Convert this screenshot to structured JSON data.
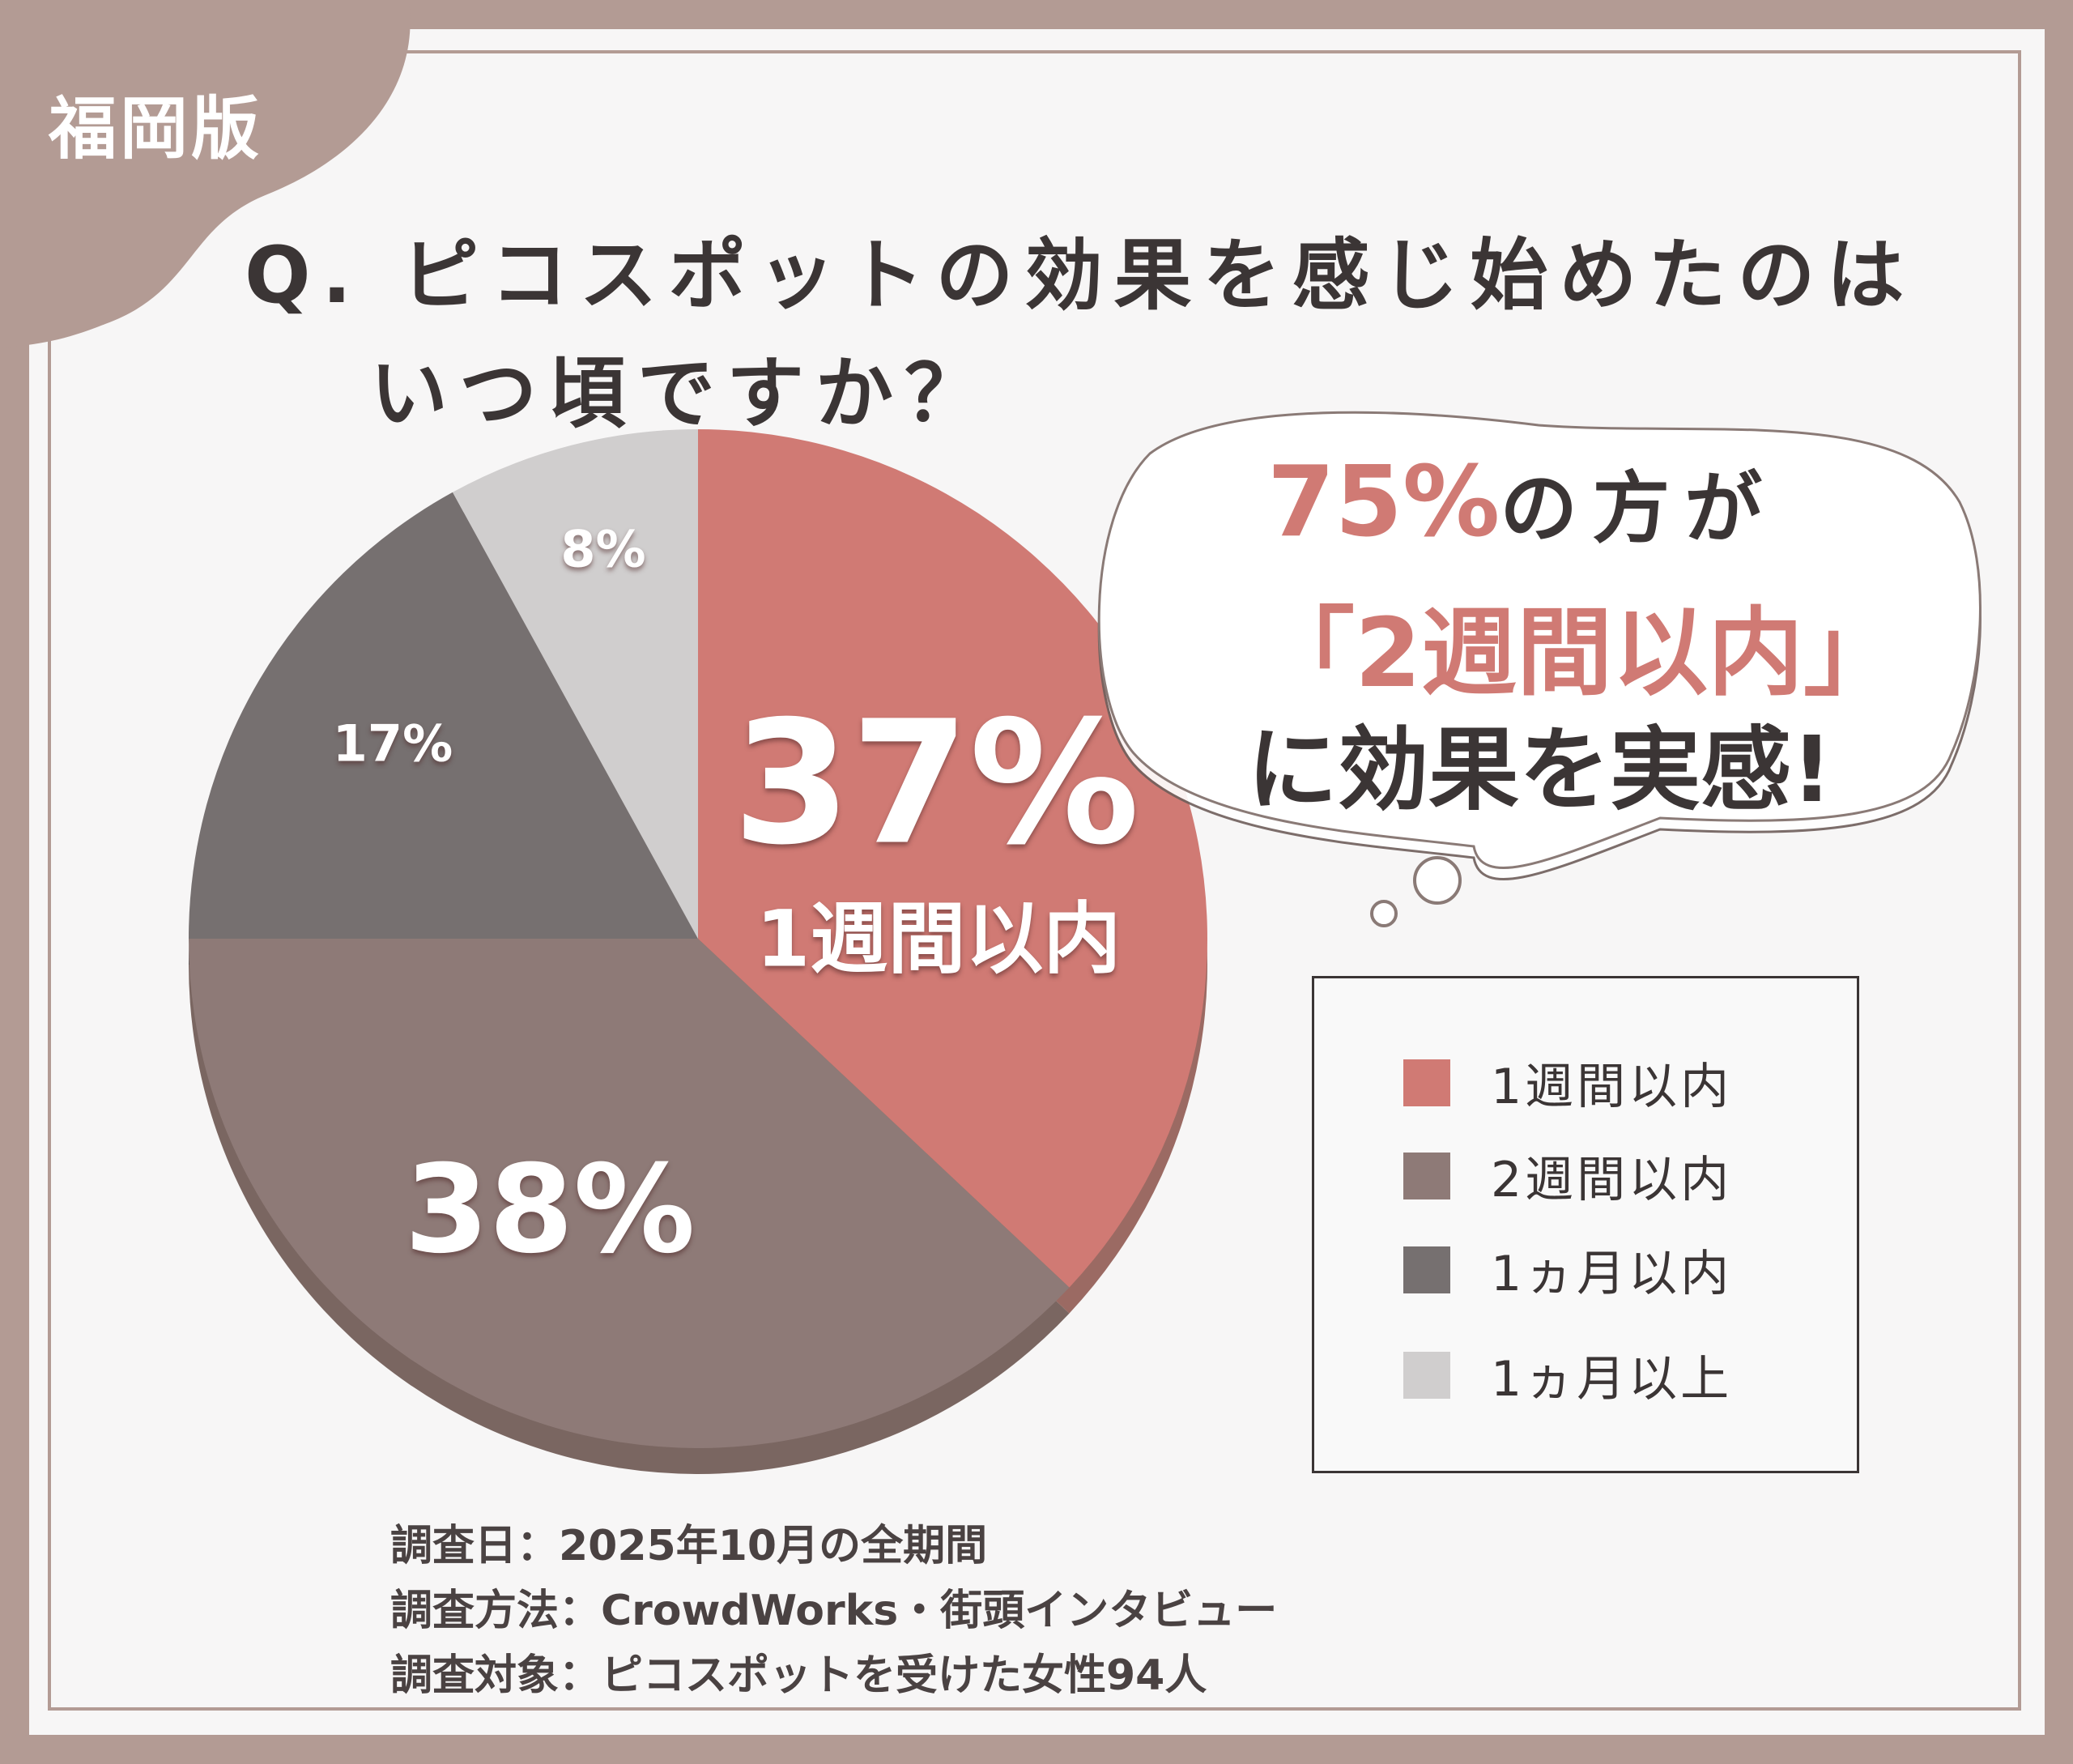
{
  "edition": "福岡版",
  "title": {
    "line1": "Q. ピコスポットの効果を感じ始めたのは",
    "line2": "いつ頃ですか？"
  },
  "bubble": {
    "highlight": "75%",
    "line1_rest": "の方が",
    "line2": "「2週間以内」",
    "line3": "に効果を実感!"
  },
  "chart_data": {
    "type": "pie",
    "categories": [
      "1週間以内",
      "2週間以内",
      "1ヵ月以内",
      "1ヵ月以上"
    ],
    "values": [
      37,
      38,
      17,
      8
    ],
    "labels": [
      "37%",
      "38%",
      "17%",
      "8%"
    ],
    "inner_sub_label": "1週間以内",
    "colors": [
      "#d07a74",
      "#8e7a77",
      "#767070",
      "#d0cece"
    ],
    "depth_colors": [
      "#9b6a63",
      "#7a6661",
      "#5f5857",
      "#aaa6a5"
    ],
    "legend_position": "right"
  },
  "legend": [
    "1週間以内",
    "2週間以内",
    "1ヵ月以内",
    "1ヵ月以上"
  ],
  "footer": [
    "調査日：2025年10月の全期間",
    "調査方法：CrowdWorks・街頭インタビュー",
    "調査対象：ピコスポットを受けた女性94人"
  ],
  "colors": {
    "frame": "#b39b94",
    "accent": "#d07a74",
    "text": "#3b3535"
  }
}
